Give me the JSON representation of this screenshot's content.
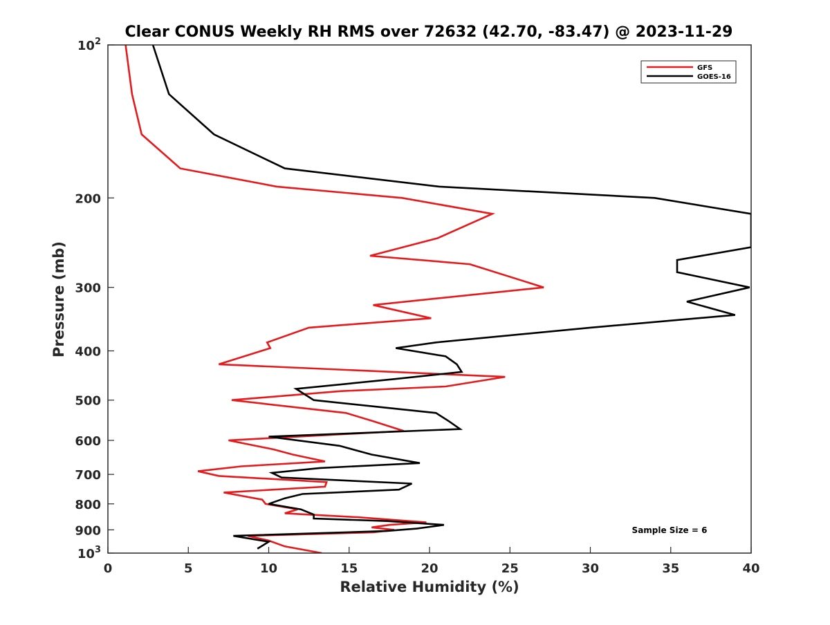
{
  "chart_data": {
    "type": "line",
    "title": "Clear CONUS Weekly RH RMS over 72632 (42.70, -83.47) @ 2023-11-29",
    "xlabel": "Relative Humidity (%)",
    "ylabel": "Pressure (mb)",
    "xlim": [
      0,
      40
    ],
    "ylim": [
      100,
      1000
    ],
    "y_scale": "log",
    "y_reversed": true,
    "x_ticks": [
      "0",
      "5",
      "10",
      "15",
      "20",
      "25",
      "30",
      "35",
      "40"
    ],
    "y_ticks": [
      {
        "value": 100,
        "base": "10",
        "exp": "2"
      },
      {
        "value": 200,
        "label": "200"
      },
      {
        "value": 300,
        "label": "300"
      },
      {
        "value": 400,
        "label": "400"
      },
      {
        "value": 500,
        "label": "500"
      },
      {
        "value": 600,
        "label": "600"
      },
      {
        "value": 700,
        "label": "700"
      },
      {
        "value": 800,
        "label": "800"
      },
      {
        "value": 900,
        "label": "900"
      },
      {
        "value": 1000,
        "base": "10",
        "exp": "3"
      }
    ],
    "legend_position": "top-right",
    "grid": false,
    "annotation": "Sample Size = 6",
    "series": [
      {
        "name": "GFS",
        "color": "#e41a1c",
        "points": [
          [
            1.1,
            100
          ],
          [
            1.5,
            125
          ],
          [
            2.1,
            150
          ],
          [
            4.5,
            175
          ],
          [
            10.5,
            190
          ],
          [
            18.3,
            200
          ],
          [
            23.9,
            215
          ],
          [
            20.5,
            240
          ],
          [
            16.3,
            260
          ],
          [
            22.5,
            270
          ],
          [
            27.1,
            300
          ],
          [
            16.5,
            325
          ],
          [
            20.1,
            345
          ],
          [
            12.5,
            360
          ],
          [
            9.9,
            385
          ],
          [
            10.1,
            395
          ],
          [
            6.9,
            425
          ],
          [
            24.7,
            450
          ],
          [
            21.0,
            470
          ],
          [
            14.5,
            480
          ],
          [
            7.7,
            500
          ],
          [
            14.8,
            530
          ],
          [
            16.5,
            550
          ],
          [
            18.4,
            575
          ],
          [
            7.5,
            600
          ],
          [
            10.3,
            625
          ],
          [
            11.5,
            640
          ],
          [
            13.5,
            660
          ],
          [
            8.3,
            675
          ],
          [
            5.6,
            690
          ],
          [
            6.9,
            705
          ],
          [
            13.6,
            725
          ],
          [
            13.5,
            740
          ],
          [
            7.2,
            760
          ],
          [
            9.6,
            785
          ],
          [
            9.8,
            800
          ],
          [
            11.8,
            820
          ],
          [
            11.0,
            835
          ],
          [
            15.5,
            850
          ],
          [
            19.8,
            870
          ],
          [
            17.5,
            880
          ],
          [
            16.4,
            890
          ],
          [
            17.8,
            900
          ],
          [
            16.5,
            910
          ],
          [
            8.7,
            925
          ],
          [
            10.0,
            945
          ],
          [
            11.0,
            970
          ],
          [
            13.3,
            1000
          ]
        ]
      },
      {
        "name": "GOES-16",
        "color": "#000000",
        "points": [
          [
            2.8,
            100
          ],
          [
            3.8,
            125
          ],
          [
            6.6,
            150
          ],
          [
            11.0,
            175
          ],
          [
            20.6,
            190
          ],
          [
            34.0,
            200
          ],
          [
            40.0,
            215
          ],
          [
            40.0,
            250
          ],
          [
            35.4,
            265
          ],
          [
            35.4,
            280
          ],
          [
            39.9,
            300
          ],
          [
            36.0,
            320
          ],
          [
            39.0,
            340
          ],
          [
            30.0,
            360
          ],
          [
            20.4,
            385
          ],
          [
            17.9,
            395
          ],
          [
            21.0,
            410
          ],
          [
            21.7,
            425
          ],
          [
            22.0,
            440
          ],
          [
            17.7,
            455
          ],
          [
            11.7,
            475
          ],
          [
            12.8,
            500
          ],
          [
            20.4,
            530
          ],
          [
            21.2,
            550
          ],
          [
            21.9,
            570
          ],
          [
            10.0,
            590
          ],
          [
            14.4,
            615
          ],
          [
            16.4,
            640
          ],
          [
            19.4,
            665
          ],
          [
            13.2,
            680
          ],
          [
            10.2,
            695
          ],
          [
            10.8,
            710
          ],
          [
            18.9,
            730
          ],
          [
            18.1,
            750
          ],
          [
            12.1,
            765
          ],
          [
            11.0,
            780
          ],
          [
            10.0,
            800
          ],
          [
            12.0,
            820
          ],
          [
            12.8,
            840
          ],
          [
            12.8,
            855
          ],
          [
            17.4,
            865
          ],
          [
            20.9,
            880
          ],
          [
            19.2,
            895
          ],
          [
            17.3,
            905
          ],
          [
            7.8,
            925
          ],
          [
            10.0,
            950
          ],
          [
            9.3,
            980
          ]
        ]
      }
    ]
  }
}
